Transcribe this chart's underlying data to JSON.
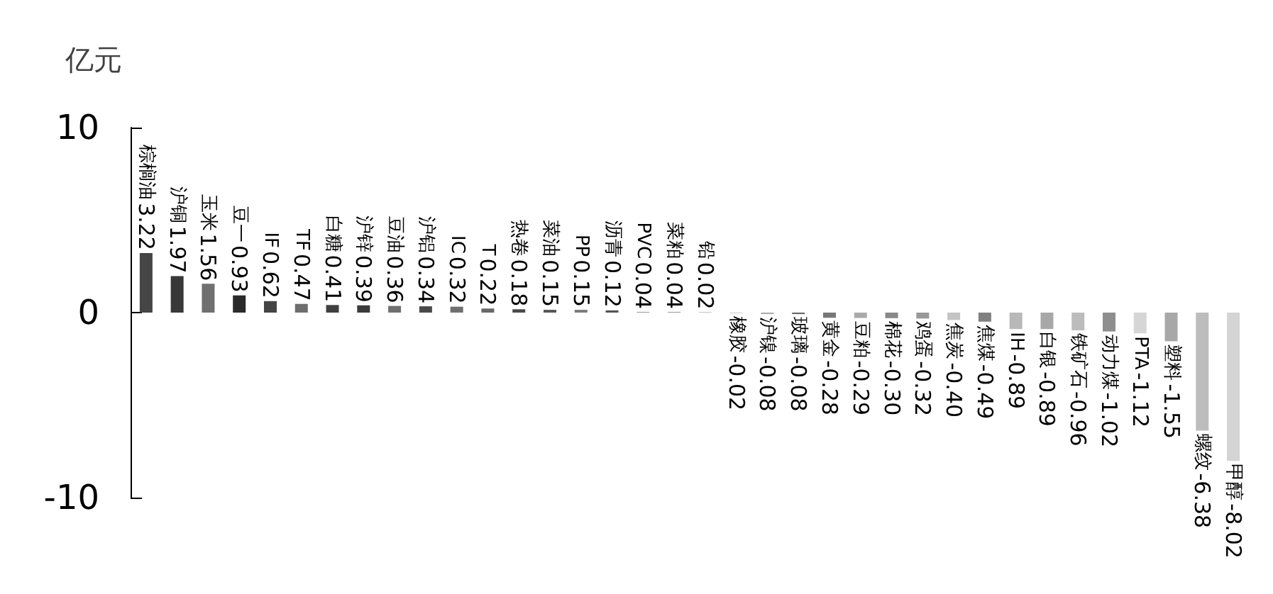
{
  "chart_data": {
    "type": "bar",
    "ylabel": "亿元",
    "categories": [
      "棕榈油",
      "沪铜",
      "玉米",
      "豆一",
      "IF",
      "TF",
      "白糖",
      "沪锌",
      "豆油",
      "沪铝",
      "IC",
      "T",
      "热卷",
      "菜油",
      "PP",
      "沥青",
      "PVC",
      "菜粕",
      "铅",
      "橡胶",
      "沪镍",
      "玻璃",
      "黄金",
      "豆粕",
      "棉花",
      "鸡蛋",
      "焦炭",
      "焦煤",
      "IH",
      "白银",
      "铁矿石",
      "动力煤",
      "PTA",
      "塑料",
      "螺纹",
      "甲醇"
    ],
    "values": [
      3.22,
      1.97,
      1.56,
      0.93,
      0.62,
      0.47,
      0.41,
      0.39,
      0.36,
      0.34,
      0.32,
      0.22,
      0.18,
      0.15,
      0.15,
      0.12,
      0.04,
      0.04,
      0.02,
      -0.02,
      -0.08,
      -0.08,
      -0.28,
      -0.29,
      -0.3,
      -0.32,
      -0.4,
      -0.49,
      -0.89,
      -0.89,
      -0.96,
      -1.02,
      -1.12,
      -1.55,
      -6.38,
      -8.02
    ],
    "value_labels": [
      "3.22",
      "1.97",
      "1.56",
      "0.93",
      "0.62",
      "0.47",
      "0.41",
      "0.39",
      "0.36",
      "0.34",
      "0.32",
      "0.22",
      "0.18",
      "0.15",
      "0.15",
      "0.12",
      "0.04",
      "0.04",
      "0.02",
      "-0.02",
      "-0.08",
      "-0.08",
      "-0.28",
      "-0.29",
      "-0.30",
      "-0.32",
      "-0.40",
      "-0.49",
      "-0.89",
      "-0.89",
      "-0.96",
      "-1.02",
      "-1.12",
      "-1.55",
      "-6.38",
      "-8.02"
    ],
    "colors": [
      "#454545",
      "#383838",
      "#707070",
      "#2a2a2a",
      "#454545",
      "#6e6e6e",
      "#404040",
      "#3a3a3a",
      "#707070",
      "#4a4a4a",
      "#707070",
      "#686868",
      "#4a4a4a",
      "#555555",
      "#7a7a7a",
      "#555555",
      "#9a9a9a",
      "#9a9a9a",
      "#8a8a8a",
      "#999999",
      "#aaaaaa",
      "#666666",
      "#777777",
      "#aaaaaa",
      "#888888",
      "#999999",
      "#c4c4c4",
      "#808080",
      "#b8b8b8",
      "#a8a8a8",
      "#bcbcbc",
      "#8e8e8e",
      "#d6d6d6",
      "#a8a8a8",
      "#bdbdbd",
      "#d4d4d4"
    ],
    "ylim": [
      -10,
      10
    ],
    "yticks": [
      -10,
      0,
      10
    ],
    "grid": false,
    "tick_labels": "y"
  }
}
